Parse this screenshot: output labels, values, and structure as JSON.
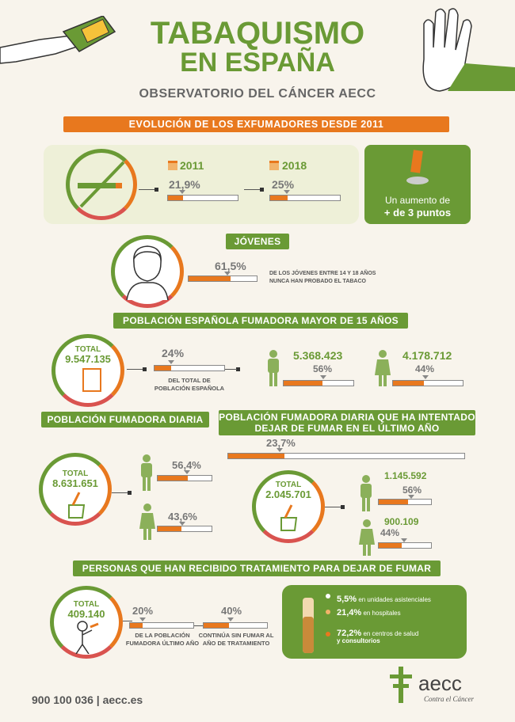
{
  "header": {
    "title1": "TABAQUISMO",
    "title2": "EN ESPAÑA",
    "subtitle": "OBSERVATORIO DEL CÁNCER AECC"
  },
  "sec1": {
    "banner": "EVOLUCIÓN DE LOS EXFUMADORES DESDE 2011",
    "y1": "2011",
    "y2": "2018",
    "p1": "21,9%",
    "p2": "25%",
    "v1": 21.9,
    "v2": 25,
    "note1": "Un aumento de",
    "note2": "+ de 3 puntos"
  },
  "sec2": {
    "banner": "JÓVENES",
    "pct": "61,5%",
    "v": 61.5,
    "desc": "DE LOS JÓVENES ENTRE 14 Y 18 AÑOS NUNCA HAN PROBADO EL TABACO"
  },
  "sec3": {
    "banner": "POBLACIÓN ESPAÑOLA FUMADORA MAYOR DE 15 AÑOS",
    "total_label": "TOTAL",
    "total": "9.547.135",
    "pct": "24%",
    "v": 24,
    "desc": "DEL TOTAL DE POBLACIÓN ESPAÑOLA",
    "men": "5.368.423",
    "men_pct": "56%",
    "men_v": 56,
    "women": "4.178.712",
    "women_pct": "44%",
    "women_v": 44
  },
  "sec4": {
    "banner": "POBLACIÓN FUMADORA DIARIA",
    "total_label": "TOTAL",
    "total": "8.631.651",
    "men_pct": "56,4%",
    "men_v": 56.4,
    "women_pct": "43,6%",
    "women_v": 43.6
  },
  "sec5": {
    "banner": "POBLACIÓN FUMADORA DIARIA QUE HA INTENTADO DEJAR DE FUMAR EN EL ÚLTIMO AÑO",
    "pct": "23,7%",
    "v": 23.7,
    "total_label": "TOTAL",
    "total": "2.045.701",
    "men": "1.145.592",
    "men_pct": "56%",
    "men_v": 56,
    "women": "900.109",
    "women_pct": "44%",
    "women_v": 44
  },
  "sec6": {
    "banner": "PERSONAS QUE HAN RECIBIDO TRATAMIENTO PARA DEJAR DE FUMAR",
    "total_label": "TOTAL",
    "total": "409.140",
    "p1": "20%",
    "v1": 20,
    "d1": "DE LA POBLACIÓN FUMADORA ÚLTIMO AÑO",
    "p2": "40%",
    "v2": 40,
    "d2": "CONTINÚA SIN FUMAR AL AÑO DE TRATAMIENTO",
    "items": [
      {
        "pct": "5,5%",
        "text": "en unidades asistenciales"
      },
      {
        "pct": "21,4%",
        "text": "en hospitales"
      },
      {
        "pct": "72,2%",
        "text": "en centros de salud"
      },
      {
        "text": "y consultorios"
      }
    ]
  },
  "footer": {
    "phone": "900 100 036",
    "sep": "|",
    "web": "aecc.es",
    "logo": "aecc",
    "logo_sub": "Contra el Cáncer"
  },
  "colors": {
    "green": "#6a9a35",
    "orange": "#e8781e",
    "red": "#d9534f",
    "bg": "#f8f4ec"
  }
}
